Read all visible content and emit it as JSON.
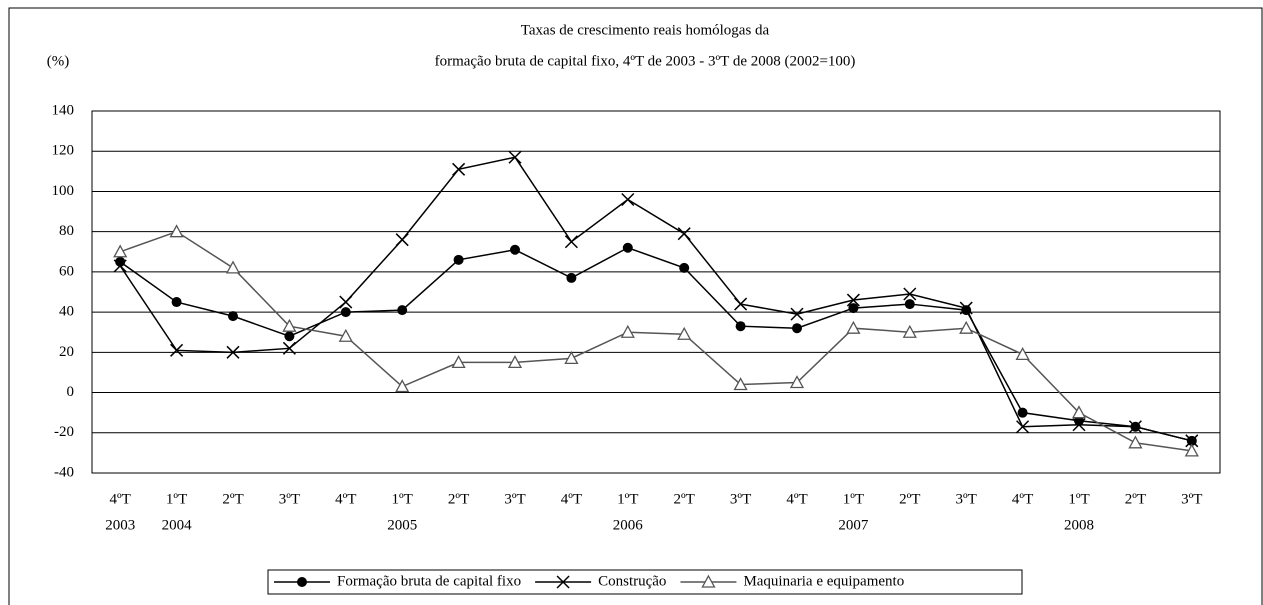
{
  "chart_data": {
    "type": "line",
    "title": [
      "Taxas de crescimento reais homólogas da",
      "formação bruta de capital fixo, 4ºT de 2003 - 3ºT de 2008 (2002=100)"
    ],
    "y_label": "(%)",
    "categories": [
      "4ºT",
      "1ºT",
      "2ºT",
      "3ºT",
      "4ºT",
      "1ºT",
      "2ºT",
      "3ºT",
      "4ºT",
      "1ºT",
      "2ºT",
      "3ºT",
      "4ºT",
      "1ºT",
      "2ºT",
      "3ºT",
      "4ºT",
      "1ºT",
      "2ºT",
      "3ºT"
    ],
    "years": [
      "2003",
      "2004",
      null,
      null,
      null,
      "2005",
      null,
      null,
      null,
      "2006",
      null,
      null,
      null,
      "2007",
      null,
      null,
      null,
      "2008",
      null,
      null
    ],
    "series": [
      {
        "name": "Formação bruta de capital fixo",
        "color": "#000000",
        "marker": "circle",
        "values": [
          65,
          45,
          38,
          28,
          40,
          41,
          66,
          71,
          57,
          72,
          62,
          33,
          32,
          42,
          44,
          41,
          -10,
          -14,
          -17,
          -24
        ]
      },
      {
        "name": "Construção",
        "color": "#000000",
        "marker": "x",
        "values": [
          63,
          21,
          20,
          22,
          45,
          76,
          111,
          117,
          75,
          96,
          79,
          44,
          39,
          46,
          49,
          42,
          -17,
          -16,
          -17,
          -24
        ]
      },
      {
        "name": "Maquinaria e equipamento",
        "color": "#555555",
        "marker": "triangle",
        "values": [
          70,
          80,
          62,
          33,
          28,
          3,
          15,
          15,
          17,
          30,
          29,
          4,
          5,
          32,
          30,
          32,
          19,
          -10,
          -25,
          -29
        ]
      }
    ],
    "ylim": [
      -40,
      140
    ],
    "yticks": [
      -40,
      -20,
      0,
      20,
      40,
      60,
      80,
      100,
      120,
      140
    ],
    "grid": true,
    "legend": "bottom"
  }
}
